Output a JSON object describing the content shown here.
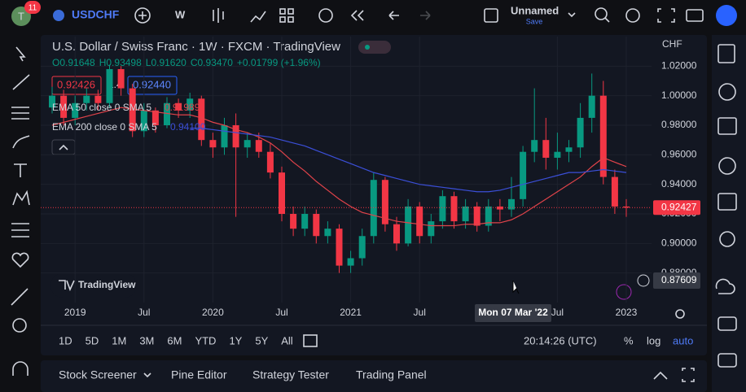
{
  "ui": {
    "badge": "11",
    "avatar": "T",
    "symbol": "USDCHF",
    "interval": "W",
    "layout_name": "Unnamed",
    "save": "Save",
    "logo": "TradingView",
    "timeframes": [
      "1D",
      "5D",
      "1M",
      "3M",
      "6M",
      "YTD",
      "1Y",
      "5Y",
      "All"
    ],
    "clock": "20:14:26 (UTC)",
    "percent": "%",
    "log": "log",
    "auto": "auto",
    "bottom_tabs": [
      "Stock Screener",
      "Pine Editor",
      "Strategy Tester",
      "Trading Panel"
    ]
  },
  "chart_data": {
    "type": "candlestick",
    "title": "U.S. Dollar / Swiss Franc · 1W · FXCM · TradingView",
    "ohlc_readout": [
      "O0.91648",
      "H0.93498",
      "L0.91620",
      "C0.93470",
      "+0.01799 (+1.96%)"
    ],
    "currency": "CHF",
    "bid": "0.92426",
    "spread": "1.4",
    "ask": "0.92440",
    "categories": [
      null,
      null,
      "2019",
      null,
      null,
      null,
      null,
      null,
      "Jul",
      null,
      null,
      null,
      null,
      null,
      "2020",
      null,
      null,
      null,
      null,
      null,
      "Jul",
      null,
      null,
      null,
      null,
      null,
      "2021",
      null,
      null,
      null,
      null,
      null,
      "Jul",
      null,
      null,
      null,
      null,
      null,
      null,
      null,
      null,
      null,
      null,
      null,
      "Jul",
      null,
      null,
      null,
      null,
      null,
      "2023"
    ],
    "open": [
      0.992,
      1.0,
      0.985,
      0.995,
      1.0,
      0.995,
      1.018,
      1.005,
      0.976,
      0.99,
      0.98,
      0.995,
      0.99,
      0.998,
      0.97,
      0.965,
      0.98,
      0.965,
      0.97,
      0.962,
      0.948,
      0.92,
      0.91,
      0.92,
      0.905,
      0.91,
      0.885,
      0.89,
      0.905,
      0.943,
      0.913,
      0.9,
      0.925,
      0.905,
      0.915,
      0.932,
      0.915,
      0.925,
      0.912,
      0.925,
      0.923,
      0.93,
      0.962,
      0.97,
      0.958,
      0.962,
      0.965,
      0.985,
      1.0,
      0.945,
      0.925
    ],
    "high": [
      1.006,
      1.004,
      1.0,
      1.005,
      1.004,
      1.021,
      1.02,
      1.008,
      0.995,
      0.992,
      0.999,
      0.998,
      1.002,
      1.0,
      0.975,
      0.985,
      0.988,
      0.975,
      0.975,
      0.968,
      0.952,
      0.925,
      0.925,
      0.923,
      0.915,
      0.913,
      0.895,
      0.91,
      0.948,
      0.945,
      0.918,
      0.93,
      0.928,
      0.92,
      0.936,
      0.935,
      0.93,
      0.928,
      0.93,
      0.93,
      0.945,
      0.966,
      1.005,
      0.985,
      0.975,
      0.97,
      0.995,
      1.015,
      1.01,
      0.95,
      0.93
    ],
    "low": [
      0.988,
      0.98,
      0.98,
      0.99,
      0.99,
      0.992,
      1.0,
      0.972,
      0.972,
      0.975,
      0.978,
      0.985,
      0.985,
      0.966,
      0.958,
      0.96,
      0.918,
      0.958,
      0.958,
      0.944,
      0.915,
      0.905,
      0.905,
      0.9,
      0.9,
      0.88,
      0.88,
      0.885,
      0.9,
      0.908,
      0.895,
      0.898,
      0.9,
      0.9,
      0.91,
      0.91,
      0.91,
      0.908,
      0.908,
      0.915,
      0.918,
      0.925,
      0.955,
      0.95,
      0.95,
      0.955,
      0.958,
      0.975,
      0.94,
      0.92,
      0.918
    ],
    "close": [
      1.0,
      0.985,
      0.995,
      1.0,
      0.995,
      1.018,
      1.005,
      0.976,
      0.99,
      0.98,
      0.995,
      0.99,
      0.998,
      0.97,
      0.965,
      0.98,
      0.965,
      0.97,
      0.962,
      0.948,
      0.92,
      0.91,
      0.92,
      0.905,
      0.91,
      0.885,
      0.89,
      0.905,
      0.943,
      0.913,
      0.9,
      0.925,
      0.905,
      0.915,
      0.932,
      0.915,
      0.925,
      0.912,
      0.925,
      0.923,
      0.93,
      0.962,
      0.97,
      0.958,
      0.962,
      0.965,
      0.985,
      1.0,
      0.945,
      0.925,
      0.92427
    ],
    "up_color": "#089981",
    "down_color": "#f23645",
    "series": [
      {
        "name": "EMA 50 close 0 SMA 5",
        "value_label": "0.91989",
        "color": "#e0434a",
        "values": [
          0.98,
          0.982,
          0.984,
          0.986,
          0.988,
          0.99,
          0.992,
          0.991,
          0.99,
          0.989,
          0.988,
          0.987,
          0.987,
          0.985,
          0.982,
          0.98,
          0.977,
          0.975,
          0.972,
          0.968,
          0.962,
          0.955,
          0.949,
          0.942,
          0.936,
          0.93,
          0.925,
          0.921,
          0.919,
          0.917,
          0.915,
          0.914,
          0.913,
          0.912,
          0.912,
          0.912,
          0.913,
          0.913,
          0.914,
          0.914,
          0.916,
          0.92,
          0.925,
          0.93,
          0.935,
          0.94,
          0.945,
          0.952,
          0.958,
          0.955,
          0.952
        ]
      },
      {
        "name": "EMA 200 close 0 SMA 5",
        "value_label": "0.94100",
        "color": "#3b4fd8",
        "values": [
          null,
          null,
          null,
          null,
          null,
          null,
          null,
          null,
          null,
          null,
          null,
          null,
          0.978,
          0.978,
          0.977,
          0.976,
          0.975,
          0.974,
          0.973,
          0.972,
          0.97,
          0.968,
          0.966,
          0.963,
          0.96,
          0.957,
          0.954,
          0.951,
          0.948,
          0.946,
          0.944,
          0.942,
          0.94,
          0.939,
          0.938,
          0.937,
          0.936,
          0.935,
          0.935,
          0.936,
          0.938,
          0.94,
          0.942,
          0.944,
          0.946,
          0.948,
          0.948,
          0.949,
          0.95,
          0.949,
          0.948
        ]
      }
    ],
    "ylim": [
      0.86,
      1.04
    ],
    "yticks": [
      {
        "value": 0.88,
        "label": "0.88000"
      },
      {
        "value": 0.9,
        "label": "0.90000"
      },
      {
        "value": 0.92,
        "label": "0.92000"
      },
      {
        "value": 0.94,
        "label": "0.94000"
      },
      {
        "value": 0.96,
        "label": "0.96000"
      },
      {
        "value": 0.98,
        "label": "0.98000"
      },
      {
        "value": 1,
        "label": "1.00000"
      },
      {
        "value": 1.02,
        "label": "1.02000"
      }
    ],
    "crosshair_x_label": "Mon 07 Mar '22",
    "crosshair_y_label": "0.87609"
  }
}
